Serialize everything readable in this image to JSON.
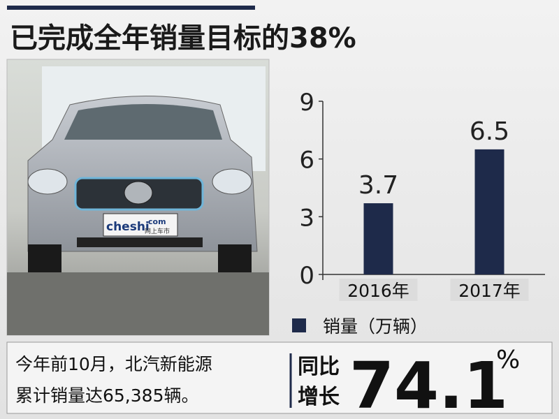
{
  "chart_data": {
    "type": "bar",
    "title": "已完成全年销量目标的38%",
    "categories": [
      "2016年",
      "2017年"
    ],
    "series": [
      {
        "name": "销量（万辆）",
        "color": "#1e2a4a",
        "values": [
          3.7,
          6.5
        ]
      }
    ],
    "ylim": [
      0,
      9
    ],
    "yticks": [
      0,
      3,
      6,
      9
    ]
  },
  "photo": {
    "watermark": [
      "cheshi",
      "com",
      "网上车市"
    ]
  },
  "note": {
    "lines": [
      "今年前10月，北汽新能源",
      "累计销量达65,385辆。"
    ]
  },
  "growth": {
    "label": [
      "同比",
      "增长"
    ],
    "value": "74.1",
    "unit": "%"
  }
}
